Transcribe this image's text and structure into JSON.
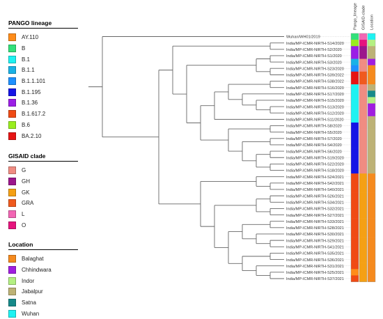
{
  "legends": {
    "pango": {
      "title": "PANGO lineage",
      "items": [
        {
          "label": "AY.110",
          "color": "#FF8C1A"
        },
        {
          "label": "B",
          "color": "#33E07A"
        },
        {
          "label": "B.1",
          "color": "#1EF2F2"
        },
        {
          "label": "B.1.1",
          "color": "#1AB2E6"
        },
        {
          "label": "B.1.1.101",
          "color": "#1E90FF"
        },
        {
          "label": "B.1.195",
          "color": "#1414E6"
        },
        {
          "label": "B.1.36",
          "color": "#9B1EE6"
        },
        {
          "label": "B.1.617.2",
          "color": "#F04A14"
        },
        {
          "label": "B.6",
          "color": "#99EE1E"
        },
        {
          "label": "BA.2.10",
          "color": "#E61414"
        }
      ]
    },
    "gisaid": {
      "title": "GISAID clade",
      "items": [
        {
          "label": "G",
          "color": "#F08C82"
        },
        {
          "label": "GH",
          "color": "#9C168C"
        },
        {
          "label": "GK",
          "color": "#F5A014"
        },
        {
          "label": "GRA",
          "color": "#F05A1E"
        },
        {
          "label": "L",
          "color": "#F266B4"
        },
        {
          "label": "O",
          "color": "#E6147E"
        }
      ]
    },
    "location": {
      "title": "Location",
      "items": [
        {
          "label": "Balaghat",
          "color": "#F58A1E"
        },
        {
          "label": "Chhindwara",
          "color": "#A01EE0"
        },
        {
          "label": "Indor",
          "color": "#B4F082"
        },
        {
          "label": "Jabalpur",
          "color": "#BDB276"
        },
        {
          "label": "Satna",
          "color": "#168A8A"
        },
        {
          "label": "Wuhan",
          "color": "#1EF2F2"
        }
      ]
    }
  },
  "column_headers": [
    "Pango_lineage",
    "GISAID-clade",
    "Location"
  ],
  "tree": {
    "root": {
      "children": [
        {
          "leaf": 0
        },
        {
          "children": [
            {
              "children": [
                {
                  "children": [
                    {
                      "leaf": 1
                    },
                    {
                      "leaf": 2
                    }
                  ]
                },
                {
                  "children": [
                    {
                      "children": [
                        {
                          "children": [
                            {
                              "leaf": 3
                            },
                            {
                              "leaf": 4
                            }
                          ]
                        },
                        {
                          "children": [
                            {
                              "leaf": 5
                            },
                            {
                              "leaf": 6
                            }
                          ]
                        }
                      ]
                    },
                    {
                      "children": [
                        {
                          "children": [
                            {
                              "children": [
                                {
                                  "children": [
                                    {
                                      "leaf": 7
                                    },
                                    {
                                      "leaf": 8
                                    }
                                  ]
                                },
                                {
                                  "children": [
                                    {
                                      "leaf": 9
                                    },
                                    {
                                      "children": [
                                        {
                                          "leaf": 10
                                        },
                                        {
                                          "children": [
                                            {
                                              "leaf": 11
                                            },
                                            {
                                              "leaf": 12
                                            }
                                          ]
                                        }
                                      ]
                                    }
                                  ]
                                }
                              ]
                            },
                            {
                              "leaf": 13
                            }
                          ]
                        },
                        {
                          "children": [
                            {
                              "children": [
                                {
                                  "leaf": 14
                                },
                                {
                                  "leaf": 15
                                }
                              ]
                            },
                            {
                              "children": [
                                {
                                  "children": [
                                    {
                                      "leaf": 16
                                    },
                                    {
                                      "leaf": 17
                                    }
                                  ]
                                },
                                {
                                  "children": [
                                    {
                                      "children": [
                                        {
                                          "leaf": 18
                                        },
                                        {
                                          "leaf": 19
                                        }
                                      ]
                                    },
                                    {
                                      "children": [
                                        {
                                          "leaf": 20
                                        },
                                        {
                                          "leaf": 21
                                        }
                                      ]
                                    }
                                  ]
                                }
                              ]
                            }
                          ]
                        }
                      ]
                    }
                  ]
                }
              ]
            },
            {
              "children": [
                {
                  "children": [
                    {
                      "leaf": 22
                    },
                    {
                      "children": [
                        {
                          "leaf": 23
                        },
                        {
                          "leaf": 24
                        }
                      ]
                    }
                  ]
                },
                {
                  "children": [
                    {
                      "children": [
                        {
                          "children": [
                            {
                              "leaf": 25
                            },
                            {
                              "leaf": 26
                            }
                          ]
                        },
                        {
                          "children": [
                            {
                              "leaf": 27
                            },
                            {
                              "leaf": 28
                            }
                          ]
                        }
                      ]
                    },
                    {
                      "children": [
                        {
                          "children": [
                            {
                              "children": [
                                {
                                  "leaf": 29
                                },
                                {
                                  "leaf": 30
                                }
                              ]
                            },
                            {
                              "children": [
                                {
                                  "leaf": 31
                                },
                                {
                                  "children": [
                                    {
                                      "leaf": 32
                                    },
                                    {
                                      "leaf": 33
                                    }
                                  ]
                                }
                              ]
                            }
                          ]
                        },
                        {
                          "children": [
                            {
                              "children": [
                                {
                                  "leaf": 34
                                },
                                {
                                  "leaf": 35
                                }
                              ]
                            },
                            {
                              "children": [
                                {
                                  "leaf": 36
                                },
                                {
                                  "children": [
                                    {
                                      "leaf": 37
                                    },
                                    {
                                      "leaf": 38
                                    }
                                  ]
                                }
                              ]
                            }
                          ]
                        }
                      ]
                    }
                  ]
                }
              ]
            }
          ]
        }
      ]
    }
  },
  "taxa": [
    {
      "label": "Wuhan/WH01/2019",
      "pango": "B",
      "clade": "L",
      "location": "Wuhan"
    },
    {
      "label": "India/MP-ICMR-NIRTH-S14/2020",
      "pango": "B.6",
      "clade": "O",
      "location": "Indor"
    },
    {
      "label": "India/MP-ICMR-NIRTH-S2/2020",
      "pango": "B.1.36",
      "clade": "GH",
      "location": "Jabalpur"
    },
    {
      "label": "India/MP-ICMR-NIRTH-S1/2020",
      "pango": "B.1.36",
      "clade": "GH",
      "location": "Jabalpur"
    },
    {
      "label": "India/MP-ICMR-NIRTH-S3/2020",
      "pango": "B.1.1",
      "clade": "G",
      "location": "Chhindwara"
    },
    {
      "label": "India/MP-ICMR-NIRTH-S23/2020",
      "pango": "B.1.1.101",
      "clade": "G",
      "location": "Balaghat"
    },
    {
      "label": "India/MP-ICMR-NIRTH-S39/2022",
      "pango": "BA.2.10",
      "clade": "GRA",
      "location": "Balaghat"
    },
    {
      "label": "India/MP-ICMR-NIRTH-S38/2022",
      "pango": "BA.2.10",
      "clade": "GRA",
      "location": "Balaghat"
    },
    {
      "label": "India/MP-ICMR-NIRTH-S16/2020",
      "pango": "B.1",
      "clade": "G",
      "location": "Jabalpur"
    },
    {
      "label": "India/MP-ICMR-NIRTH-S17/2020",
      "pango": "B.1",
      "clade": "G",
      "location": "Satna"
    },
    {
      "label": "India/MP-ICMR-NIRTH-S15/2020",
      "pango": "B.1",
      "clade": "G",
      "location": "Indor"
    },
    {
      "label": "India/MP-ICMR-NIRTH-S13/2020",
      "pango": "B.1",
      "clade": "G",
      "location": "Chhindwara"
    },
    {
      "label": "India/MP-ICMR-NIRTH-S12/2020",
      "pango": "B.1",
      "clade": "G",
      "location": "Chhindwara"
    },
    {
      "label": "India/MP-ICMR-NIRTH-S11/2020",
      "pango": "B.1",
      "clade": "G",
      "location": "Jabalpur"
    },
    {
      "label": "India/MP-ICMR-NIRTH-S8/2020",
      "pango": "B.1.195",
      "clade": "G",
      "location": "Jabalpur"
    },
    {
      "label": "India/MP-ICMR-NIRTH-S5/2020",
      "pango": "B.1.195",
      "clade": "G",
      "location": "Jabalpur"
    },
    {
      "label": "India/MP-ICMR-NIRTH-S7/2020",
      "pango": "B.1.195",
      "clade": "G",
      "location": "Jabalpur"
    },
    {
      "label": "India/MP-ICMR-NIRTH-S4/2020",
      "pango": "B.1.195",
      "clade": "G",
      "location": "Jabalpur"
    },
    {
      "label": "India/MP-ICMR-NIRTH-S6/2020",
      "pango": "B.1.195",
      "clade": "G",
      "location": "Jabalpur"
    },
    {
      "label": "India/MP-ICMR-NIRTH-S19/2020",
      "pango": "B.1.195",
      "clade": "G",
      "location": "Jabalpur"
    },
    {
      "label": "India/MP-ICMR-NIRTH-S22/2020",
      "pango": "B.1.195",
      "clade": "G",
      "location": "Jabalpur"
    },
    {
      "label": "India/MP-ICMR-NIRTH-S18/2020",
      "pango": "B.1.195",
      "clade": "G",
      "location": "Jabalpur"
    },
    {
      "label": "India/MP-ICMR-NIRTH-S24/2021",
      "pango": "B.1.617.2",
      "clade": "GK",
      "location": "Balaghat"
    },
    {
      "label": "India/MP-ICMR-NIRTH-S42/2021",
      "pango": "B.1.617.2",
      "clade": "GK",
      "location": "Balaghat"
    },
    {
      "label": "India/MP-ICMR-NIRTH-S40/2021",
      "pango": "B.1.617.2",
      "clade": "GK",
      "location": "Balaghat"
    },
    {
      "label": "India/MP-ICMR-NIRTH-S26/2021",
      "pango": "B.1.617.2",
      "clade": "GK",
      "location": "Balaghat"
    },
    {
      "label": "India/MP-ICMR-NIRTH-S34/2021",
      "pango": "B.1.617.2",
      "clade": "GK",
      "location": "Balaghat"
    },
    {
      "label": "India/MP-ICMR-NIRTH-S32/2021",
      "pango": "B.1.617.2",
      "clade": "GK",
      "location": "Balaghat"
    },
    {
      "label": "India/MP-ICMR-NIRTH-S27/2021",
      "pango": "B.1.617.2",
      "clade": "GK",
      "location": "Balaghat"
    },
    {
      "label": "India/MP-ICMR-NIRTH-S33/2021",
      "pango": "B.1.617.2",
      "clade": "GK",
      "location": "Balaghat"
    },
    {
      "label": "India/MP-ICMR-NIRTH-S28/2021",
      "pango": "B.1.617.2",
      "clade": "GK",
      "location": "Balaghat"
    },
    {
      "label": "India/MP-ICMR-NIRTH-S30/2021",
      "pango": "B.1.617.2",
      "clade": "GK",
      "location": "Balaghat"
    },
    {
      "label": "India/MP-ICMR-NIRTH-S29/2021",
      "pango": "B.1.617.2",
      "clade": "GK",
      "location": "Balaghat"
    },
    {
      "label": "India/MP-ICMR-NIRTH-S41/2021",
      "pango": "B.1.617.2",
      "clade": "GK",
      "location": "Balaghat"
    },
    {
      "label": "India/MP-ICMR-NIRTH-S35/2021",
      "pango": "B.1.617.2",
      "clade": "GK",
      "location": "Balaghat"
    },
    {
      "label": "India/MP-ICMR-NIRTH-S36/2021",
      "pango": "B.1.617.2",
      "clade": "GK",
      "location": "Balaghat"
    },
    {
      "label": "India/MP-ICMR-NIRTH-S31/2021",
      "pango": "B.1.617.2",
      "clade": "GK",
      "location": "Balaghat"
    },
    {
      "label": "India/MP-ICMR-NIRTH-S25/2021",
      "pango": "AY.110",
      "clade": "GK",
      "location": "Balaghat"
    },
    {
      "label": "India/MP-ICMR-NIRTH-S37/2021",
      "pango": "B.1.617.2",
      "clade": "GK",
      "location": "Balaghat"
    }
  ]
}
